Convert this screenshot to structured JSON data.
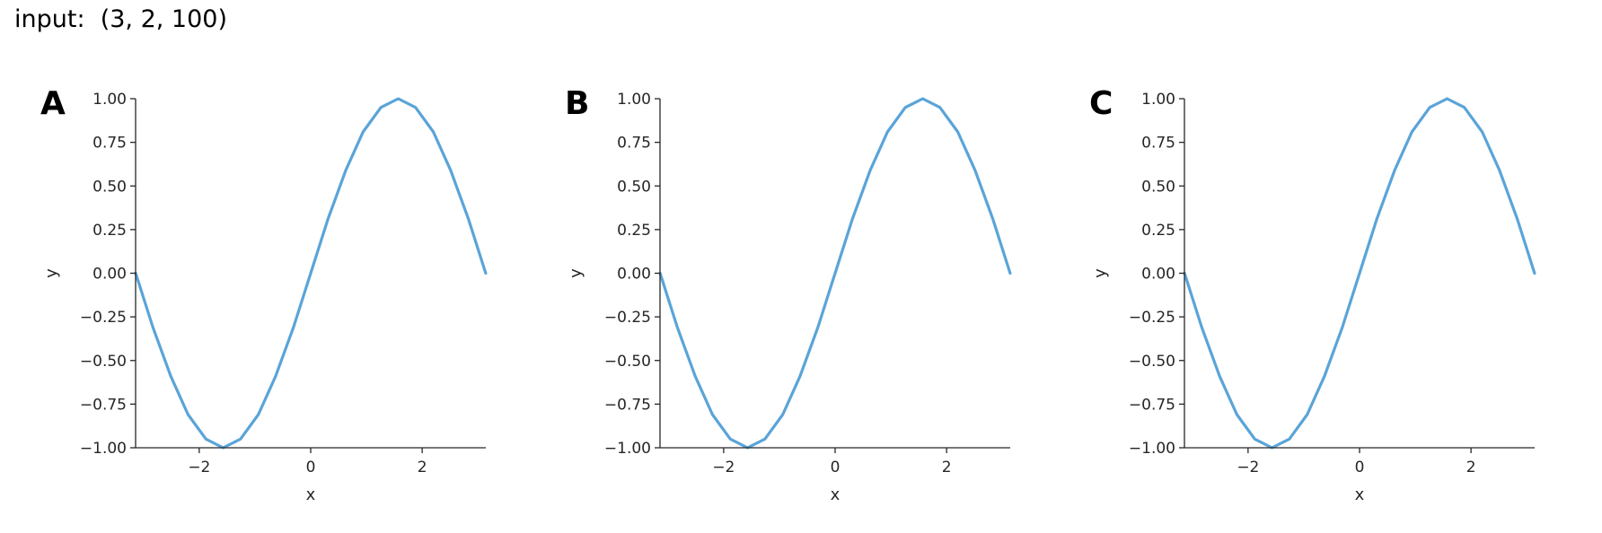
{
  "header": {
    "input_text": "input:  (3, 2, 100)"
  },
  "colors": {
    "line": "#5aa4d8",
    "axis": "#262626"
  },
  "chart_data": [
    {
      "panel": "A",
      "type": "line",
      "title": "",
      "xlabel": "x",
      "ylabel": "y",
      "xlim": [
        -3.14159,
        3.14159
      ],
      "ylim": [
        -1.0,
        1.0
      ],
      "xticks": [
        -2,
        0,
        2
      ],
      "xtick_labels": [
        "−2",
        "0",
        "2"
      ],
      "yticks": [
        1.0,
        0.75,
        0.5,
        0.25,
        0.0,
        -0.25,
        -0.5,
        -0.75,
        -1.0
      ],
      "ytick_labels": [
        "1.00",
        "0.75",
        "0.50",
        "0.25",
        "0.00",
        "−0.25",
        "−0.50",
        "−0.75",
        "−1.00"
      ],
      "grid": false,
      "series": [
        {
          "x": [
            -3.14,
            -2.83,
            -2.51,
            -2.2,
            -1.88,
            -1.57,
            -1.26,
            -0.94,
            -0.63,
            -0.31,
            0.0,
            0.31,
            0.63,
            0.94,
            1.26,
            1.57,
            1.88,
            2.2,
            2.51,
            2.83,
            3.14
          ],
          "y": [
            0.0,
            -0.31,
            -0.59,
            -0.81,
            -0.95,
            -1.0,
            -0.95,
            -0.81,
            -0.59,
            -0.31,
            0.0,
            0.31,
            0.59,
            0.81,
            0.95,
            1.0,
            0.95,
            0.81,
            0.59,
            0.31,
            0.0
          ]
        }
      ]
    },
    {
      "panel": "B",
      "type": "line",
      "title": "",
      "xlabel": "x",
      "ylabel": "y",
      "xlim": [
        -3.14159,
        3.14159
      ],
      "ylim": [
        -1.0,
        1.0
      ],
      "xticks": [
        -2,
        0,
        2
      ],
      "xtick_labels": [
        "−2",
        "0",
        "2"
      ],
      "yticks": [
        1.0,
        0.75,
        0.5,
        0.25,
        0.0,
        -0.25,
        -0.5,
        -0.75,
        -1.0
      ],
      "ytick_labels": [
        "1.00",
        "0.75",
        "0.50",
        "0.25",
        "0.00",
        "−0.25",
        "−0.50",
        "−0.75",
        "−1.00"
      ],
      "grid": false,
      "series": [
        {
          "x": [
            -3.14,
            -2.83,
            -2.51,
            -2.2,
            -1.88,
            -1.57,
            -1.26,
            -0.94,
            -0.63,
            -0.31,
            0.0,
            0.31,
            0.63,
            0.94,
            1.26,
            1.57,
            1.88,
            2.2,
            2.51,
            2.83,
            3.14
          ],
          "y": [
            0.0,
            -0.31,
            -0.59,
            -0.81,
            -0.95,
            -1.0,
            -0.95,
            -0.81,
            -0.59,
            -0.31,
            0.0,
            0.31,
            0.59,
            0.81,
            0.95,
            1.0,
            0.95,
            0.81,
            0.59,
            0.31,
            0.0
          ]
        }
      ]
    },
    {
      "panel": "C",
      "type": "line",
      "title": "",
      "xlabel": "x",
      "ylabel": "y",
      "xlim": [
        -3.14159,
        3.14159
      ],
      "ylim": [
        -1.0,
        1.0
      ],
      "xticks": [
        -2,
        0,
        2
      ],
      "xtick_labels": [
        "−2",
        "0",
        "2"
      ],
      "yticks": [
        1.0,
        0.75,
        0.5,
        0.25,
        0.0,
        -0.25,
        -0.5,
        -0.75,
        -1.0
      ],
      "ytick_labels": [
        "1.00",
        "0.75",
        "0.50",
        "0.25",
        "0.00",
        "−0.25",
        "−0.50",
        "−0.75",
        "−1.00"
      ],
      "grid": false,
      "series": [
        {
          "x": [
            -3.14,
            -2.83,
            -2.51,
            -2.2,
            -1.88,
            -1.57,
            -1.26,
            -0.94,
            -0.63,
            -0.31,
            0.0,
            0.31,
            0.63,
            0.94,
            1.26,
            1.57,
            1.88,
            2.2,
            2.51,
            2.83,
            3.14
          ],
          "y": [
            0.0,
            -0.31,
            -0.59,
            -0.81,
            -0.95,
            -1.0,
            -0.95,
            -0.81,
            -0.59,
            -0.31,
            0.0,
            0.31,
            0.59,
            0.81,
            0.95,
            1.0,
            0.95,
            0.81,
            0.59,
            0.31,
            0.0
          ]
        }
      ]
    }
  ]
}
